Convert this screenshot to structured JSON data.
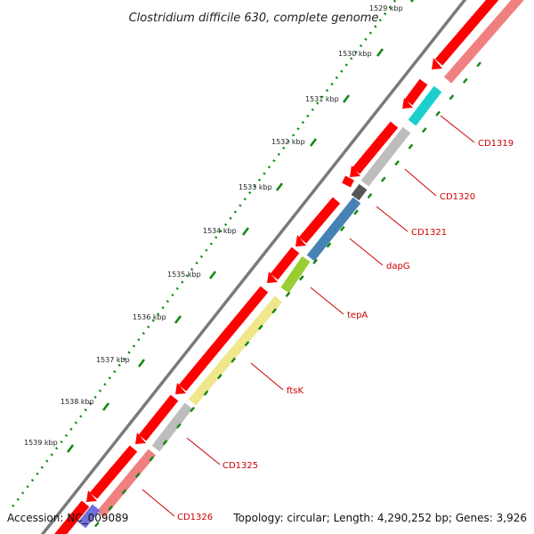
{
  "title": "Clostridium difficile 630, complete genome",
  "accession": "Accession: NC_009089",
  "topology": "Topology: circular; Length: 4,290,252 bp; Genes: 3,926",
  "tick_labels": [
    {
      "label": "1529 kbp"
    },
    {
      "label": "1530 kbp"
    },
    {
      "label": "1531 kbp"
    },
    {
      "label": "1532 kbp"
    },
    {
      "label": "1533 kbp"
    },
    {
      "label": "1534 kbp"
    },
    {
      "label": "1535 kbp"
    },
    {
      "label": "1536 kbp"
    },
    {
      "label": "1537 kbp"
    },
    {
      "label": "1538 kbp"
    },
    {
      "label": "1539 kbp"
    }
  ],
  "genes": [
    {
      "name": "CD1319",
      "color": "#1ccfcf"
    },
    {
      "name": "CD1320",
      "color": "#bdbdbd"
    },
    {
      "name": "CD1321",
      "color": "#555555"
    },
    {
      "name": "dapG",
      "color": "#4682b4"
    },
    {
      "name": "tepA",
      "color": "#9acd32"
    },
    {
      "name": "ftsK",
      "color": "#f0e68c"
    },
    {
      "name": "CD1325",
      "color": "#bdbdbd"
    },
    {
      "name": "CD1326",
      "color": "#f08080"
    }
  ],
  "colors": {
    "backbone": "#7a7a7a",
    "cds_track": "#ff0000",
    "tick": "#118811",
    "label_line": "#cc0000",
    "gene_label": "#cc0000"
  }
}
